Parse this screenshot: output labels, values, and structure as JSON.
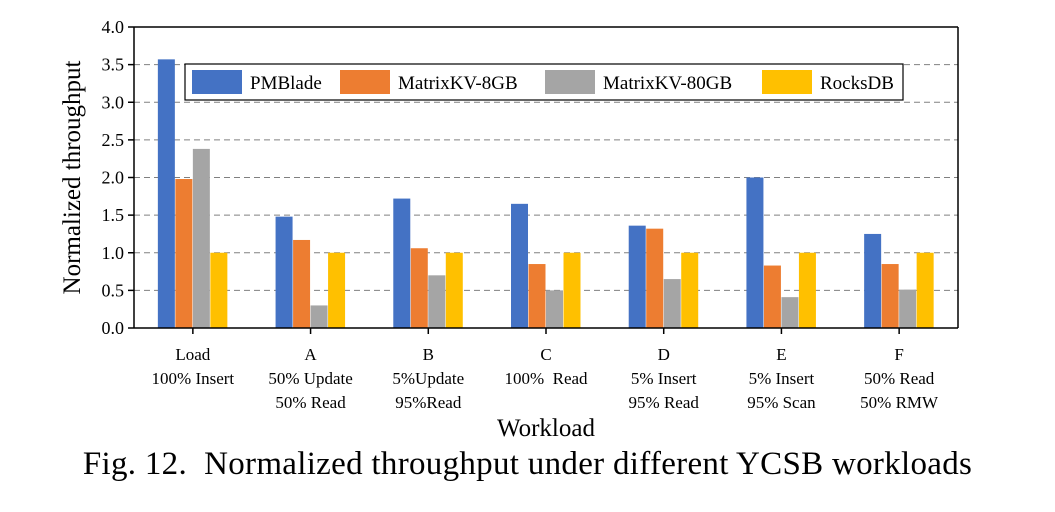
{
  "chart_data": {
    "type": "bar",
    "ylabel": "Normalized throughput",
    "xlabel": "Workload",
    "ylim": [
      0,
      4.0
    ],
    "yticks": [
      "0.0",
      "0.5",
      "1.0",
      "1.5",
      "2.0",
      "2.5",
      "3.0",
      "3.5",
      "4.0"
    ],
    "grid": "horizontal dashed",
    "legend_position": "top",
    "categories": [
      [
        "Load",
        "100% Insert"
      ],
      [
        "A",
        "50% Update",
        "50% Read"
      ],
      [
        "B",
        "5%Update",
        "95%Read"
      ],
      [
        "C",
        "100%  Read"
      ],
      [
        "D",
        "5% Insert",
        "95% Read"
      ],
      [
        "E",
        "5% Insert",
        "95% Scan"
      ],
      [
        "F",
        "50% Read",
        "50% RMW"
      ]
    ],
    "series": [
      {
        "name": "PMBlade",
        "color": "#4472C4",
        "values": [
          3.57,
          1.48,
          1.72,
          1.65,
          1.36,
          2.0,
          1.25
        ]
      },
      {
        "name": "MatrixKV-8GB",
        "color": "#ED7D31",
        "values": [
          1.98,
          1.17,
          1.06,
          0.85,
          1.32,
          0.83,
          0.85
        ]
      },
      {
        "name": "MatrixKV-80GB",
        "color": "#A5A5A5",
        "values": [
          2.38,
          0.3,
          0.7,
          0.5,
          0.65,
          0.41,
          0.51
        ]
      },
      {
        "name": "RocksDB",
        "color": "#FFC000",
        "values": [
          1.0,
          1.0,
          1.0,
          1.0,
          1.0,
          1.0,
          1.0
        ]
      }
    ]
  },
  "caption": {
    "prefix": "Fig. 12.",
    "text": "Normalized throughput under different YCSB workloads"
  }
}
